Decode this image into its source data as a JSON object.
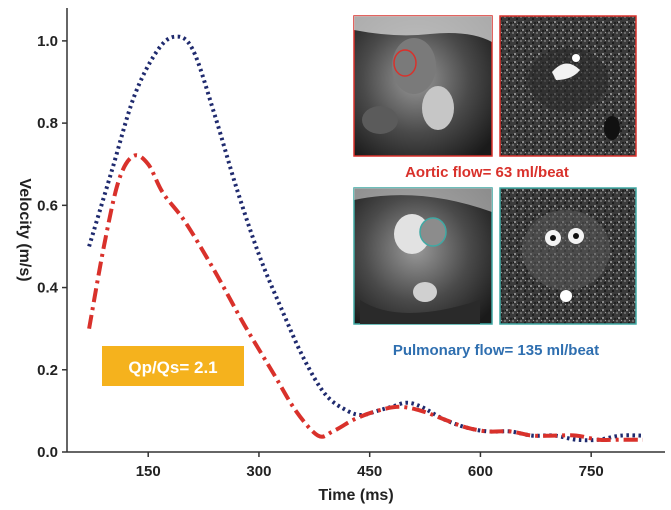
{
  "chart_data": {
    "type": "line",
    "title": "",
    "xlabel": "Time (ms)",
    "ylabel": "Velocity (m/s)",
    "xlim": [
      40,
      850
    ],
    "ylim": [
      0,
      1.08
    ],
    "xticks": [
      150,
      300,
      450,
      600,
      750
    ],
    "yticks": [
      0.0,
      0.2,
      0.4,
      0.6,
      0.8,
      1.0
    ],
    "ytick_labels": [
      "0.0",
      "0.2",
      "0.4",
      "0.6",
      "0.8",
      "1.0"
    ],
    "grid": false,
    "legend": "none",
    "series": [
      {
        "color": "#1f2a6e",
        "style": "dotted",
        "x": [
          70,
          100,
          130,
          160,
          185,
          210,
          240,
          270,
          300,
          330,
          360,
          390,
          420,
          440,
          460,
          480,
          500,
          520,
          550,
          580,
          610,
          640,
          670,
          700,
          730,
          760,
          790,
          820
        ],
        "y": [
          0.5,
          0.68,
          0.86,
          0.97,
          1.01,
          0.98,
          0.82,
          0.64,
          0.48,
          0.35,
          0.23,
          0.14,
          0.1,
          0.09,
          0.1,
          0.11,
          0.12,
          0.11,
          0.08,
          0.06,
          0.05,
          0.05,
          0.04,
          0.04,
          0.03,
          0.03,
          0.04,
          0.04
        ]
      },
      {
        "color": "#d9312b",
        "style": "dash-dot",
        "x": [
          70,
          90,
          110,
          130,
          150,
          170,
          200,
          240,
          280,
          320,
          350,
          380,
          400,
          430,
          460,
          490,
          520,
          550,
          580,
          610,
          640,
          670,
          700,
          730,
          760,
          790,
          820
        ],
        "y": [
          0.3,
          0.5,
          0.66,
          0.72,
          0.7,
          0.63,
          0.56,
          0.44,
          0.31,
          0.19,
          0.1,
          0.04,
          0.05,
          0.08,
          0.1,
          0.11,
          0.1,
          0.08,
          0.06,
          0.05,
          0.05,
          0.04,
          0.04,
          0.04,
          0.03,
          0.03,
          0.03
        ]
      }
    ],
    "annotations": {
      "aortic": "Aortic flow= 63 ml/beat",
      "pulmonary": "Pulmonary flow= 135 ml/beat",
      "ratio": "Qp/Qs= 2.1"
    }
  },
  "colors": {
    "aortic_border": "#d9312b",
    "pulmonary_border": "#3fa9a4",
    "aortic_text": "#d9312b",
    "pulmonary_text": "#2f6fb0",
    "badge_bg": "#f5b21d"
  },
  "images": {
    "aortic": [
      "aortic-magnitude-mri",
      "aortic-phase-contrast-mri"
    ],
    "pulmonary": [
      "pulmonary-magnitude-mri",
      "pulmonary-phase-contrast-mri"
    ]
  }
}
